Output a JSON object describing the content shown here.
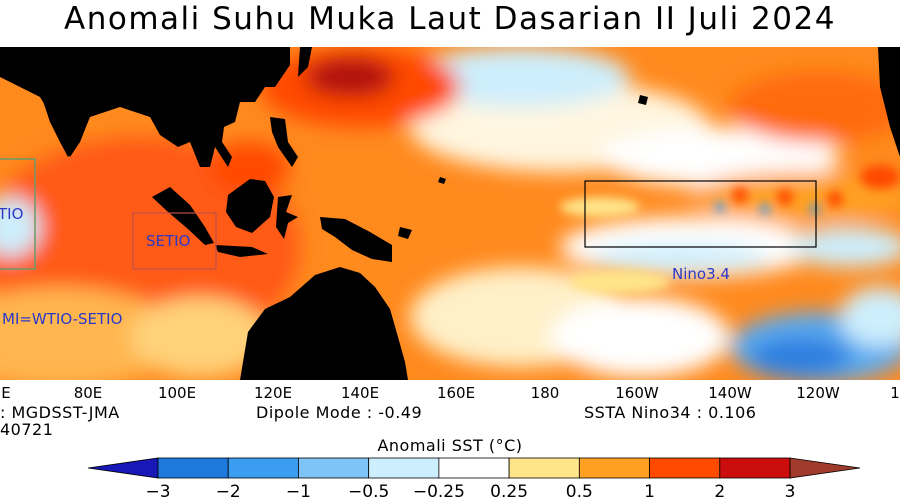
{
  "title": "Anomali Suhu Muka Laut Dasarian II Juli 2024",
  "map": {
    "regions": [
      {
        "name": "WTIO",
        "label": "TIO"
      },
      {
        "name": "SETIO",
        "label": "SETIO"
      },
      {
        "name": "Nino3.4",
        "label": "Nino3.4"
      }
    ],
    "dmi_formula": "MI=WTIO-SETIO",
    "longitude_labels": [
      "E",
      "80E",
      "100E",
      "120E",
      "140E",
      "160E",
      "180",
      "160W",
      "140W",
      "120W",
      "1"
    ]
  },
  "info": {
    "source": ": MGDSST-JMA",
    "date": "40721",
    "dipole_mode": "Dipole Mode : -0.49",
    "nino34": "SSTA Nino34 : 0.106"
  },
  "colorbar": {
    "title": "Anomali SST (°C)",
    "ticks": [
      "−3",
      "−2",
      "−1",
      "−0.5",
      "−0.25",
      "0.25",
      "0.5",
      "1",
      "2",
      "3"
    ],
    "colors": [
      "#1818b8",
      "#1f78dc",
      "#3b9df0",
      "#7fc4f8",
      "#cdeefc",
      "#ffffff",
      "#ffe58a",
      "#ffa020",
      "#ff4a00",
      "#cc0d0d",
      "#a03a2a"
    ],
    "land_color": "#000000"
  }
}
